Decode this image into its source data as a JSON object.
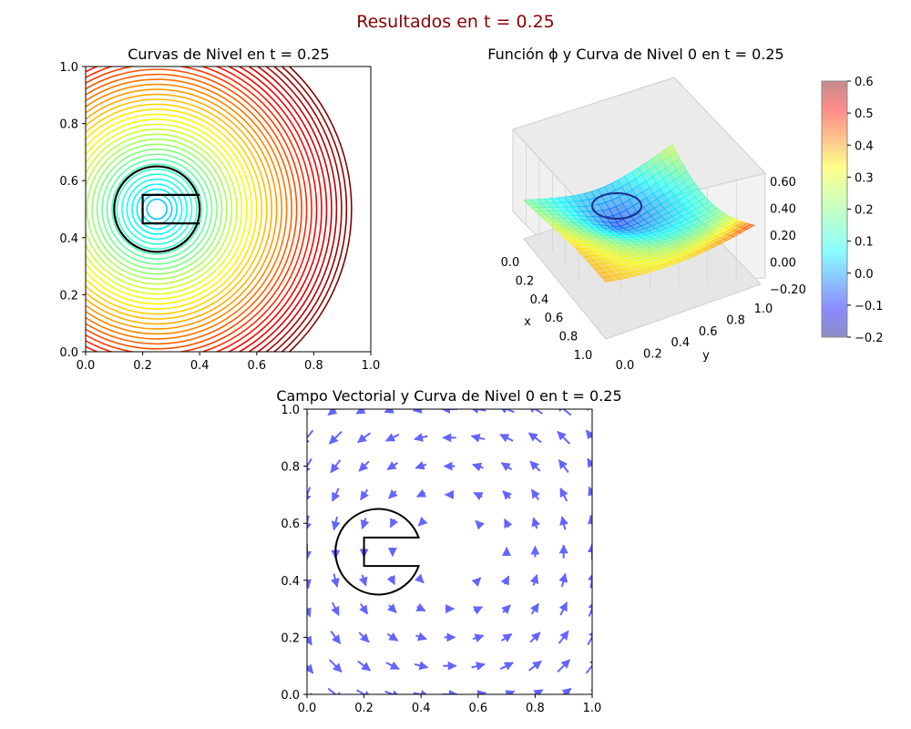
{
  "suptitle": "Resultados en t = 0.25",
  "suptitle_color": "#8b0000",
  "chart_data": [
    {
      "type": "contour",
      "title": "Curvas de Nivel en t = 0.25",
      "xlim": [
        0,
        1
      ],
      "ylim": [
        0,
        1
      ],
      "xticks": [
        "0.0",
        "0.2",
        "0.4",
        "0.6",
        "0.8",
        "1.0"
      ],
      "yticks": [
        "0.0",
        "0.2",
        "0.4",
        "0.6",
        "0.8",
        "1.0"
      ],
      "colormap": "jet",
      "zero_level_color": "#000000",
      "source_center": [
        0.25,
        0.5
      ],
      "zero_level_radius": 0.15
    },
    {
      "type": "surface3d",
      "title": "Función ϕ y Curva de Nivel 0 en t = 0.25",
      "xlabel": "x",
      "ylabel": "y",
      "xticks": [
        "0.0",
        "0.2",
        "0.4",
        "0.6",
        "0.8",
        "1.0"
      ],
      "yticks": [
        "0.0",
        "0.2",
        "0.4",
        "0.6",
        "0.8",
        "1.0"
      ],
      "zticks": [
        "0.60",
        "0.40",
        "0.20",
        "0.00",
        "−0.20"
      ],
      "zlim": [
        -0.2,
        0.6
      ],
      "colorbar": {
        "ticks": [
          "0.6",
          "0.5",
          "0.4",
          "0.3",
          "0.2",
          "0.1",
          "0.0",
          "−0.1",
          "−0.2"
        ],
        "range": [
          -0.2,
          0.6
        ],
        "colormap": "jet",
        "alpha": 0.45
      }
    },
    {
      "type": "quiver",
      "title": "Campo Vectorial y Curva de Nivel 0 en t = 0.25",
      "xlim": [
        0,
        1
      ],
      "ylim": [
        0,
        1
      ],
      "xticks": [
        "0.0",
        "0.2",
        "0.4",
        "0.6",
        "0.8",
        "1.0"
      ],
      "yticks": [
        "0.0",
        "0.2",
        "0.4",
        "0.6",
        "0.8",
        "1.0"
      ],
      "arrow_color": "#6464ff",
      "field": "rotational flow about (0.5, 0.5), counter-clockwise",
      "grid_points": [
        0.0,
        0.1,
        0.2,
        0.3,
        0.4,
        0.5,
        0.6,
        0.7,
        0.8,
        0.9,
        1.0
      ],
      "zero_level_shape": "notched disk",
      "zero_level_center": [
        0.25,
        0.5
      ],
      "zero_level_radius": 0.15,
      "notch_x_range": [
        0.2,
        0.4
      ],
      "notch_y_range": [
        0.45,
        0.55
      ]
    }
  ]
}
